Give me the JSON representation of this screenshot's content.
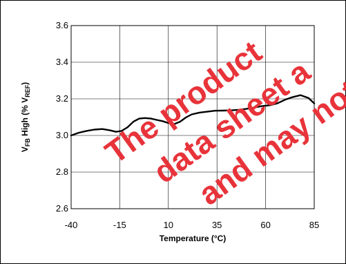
{
  "chart_data": {
    "type": "line",
    "xlabel": "Temperature (°C)",
    "ylabel": {
      "main": "V",
      "sub1": "FB",
      "mid": " High (% V",
      "sub2": "REF",
      "end": ")"
    },
    "xlim": [
      -40,
      85
    ],
    "ylim": [
      2.6,
      3.6
    ],
    "x_ticks": [
      -40,
      -15,
      10,
      35,
      60,
      85
    ],
    "x_tick_labels": [
      "-40",
      "-15",
      "10",
      "35",
      "60",
      "85"
    ],
    "y_ticks": [
      2.6,
      2.8,
      3.0,
      3.2,
      3.4,
      3.6
    ],
    "y_tick_labels": [
      "2.6",
      "2.8",
      "3.0",
      "3.2",
      "3.4",
      "3.6"
    ],
    "grid": true,
    "series": [
      {
        "color": "#000000",
        "x": [
          -40,
          -36,
          -32,
          -28,
          -24,
          -20,
          -17,
          -14,
          -11,
          -8,
          -5,
          -2,
          1,
          4,
          7,
          10,
          13,
          16,
          19,
          22,
          26,
          30,
          34,
          38,
          42,
          46,
          50,
          54,
          58,
          62,
          66,
          70,
          74,
          78,
          82,
          85
        ],
        "y": [
          3.0,
          3.015,
          3.025,
          3.032,
          3.035,
          3.028,
          3.02,
          3.025,
          3.045,
          3.075,
          3.092,
          3.095,
          3.092,
          3.085,
          3.078,
          3.068,
          3.062,
          3.075,
          3.098,
          3.115,
          3.125,
          3.13,
          3.135,
          3.136,
          3.137,
          3.14,
          3.145,
          3.152,
          3.16,
          3.165,
          3.175,
          3.195,
          3.21,
          3.22,
          3.205,
          3.175
        ]
      }
    ]
  },
  "watermark": {
    "lines": [
      "The product",
      "data sheet a",
      "and may not be"
    ],
    "color": "#e8333a"
  }
}
